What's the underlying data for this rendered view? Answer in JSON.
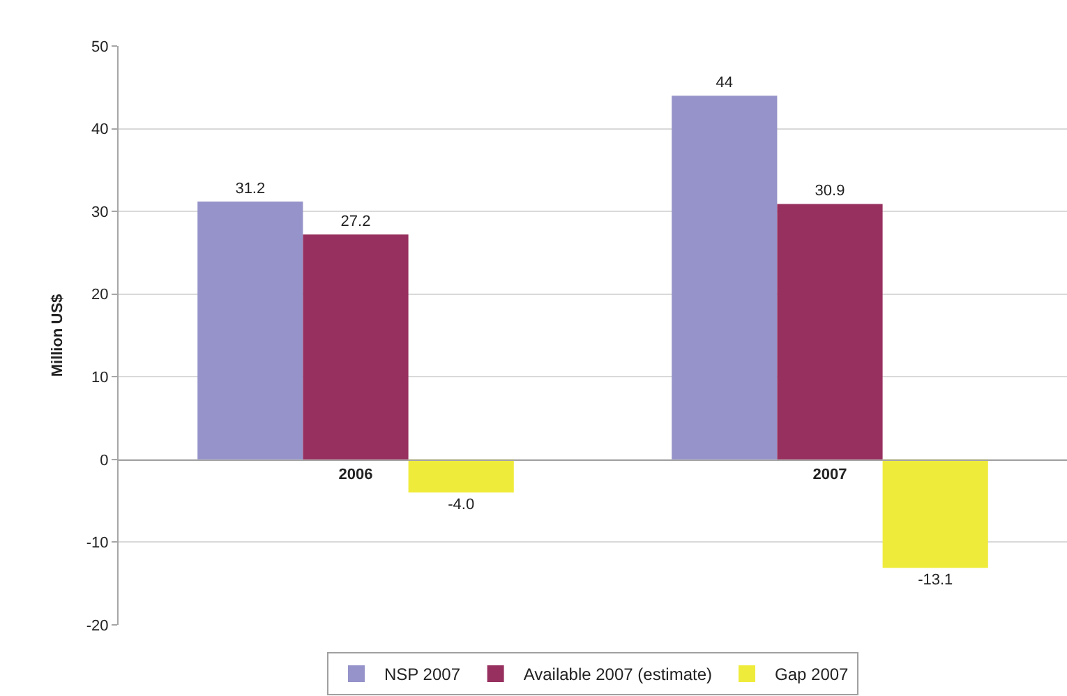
{
  "chart_data": {
    "type": "bar",
    "ylabel": "Million US$",
    "categories": [
      "2006",
      "2007"
    ],
    "series": [
      {
        "name": "NSP 2007",
        "color": "#9593c9",
        "values": [
          31.2,
          44
        ],
        "value_labels": [
          "31.2",
          "44"
        ]
      },
      {
        "name": "Available 2007 (estimate)",
        "color": "#97305f",
        "values": [
          27.2,
          30.9
        ],
        "value_labels": [
          "27.2",
          "30.9"
        ]
      },
      {
        "name": "Gap 2007",
        "color": "#efeb3b",
        "values": [
          -4.0,
          -13.1
        ],
        "value_labels": [
          "-4.0",
          "-13.1"
        ]
      }
    ],
    "ylim": [
      -20,
      50
    ],
    "yticks": [
      -20,
      -10,
      0,
      10,
      20,
      30,
      40,
      50
    ],
    "grid": "y",
    "legend": "bottom"
  }
}
